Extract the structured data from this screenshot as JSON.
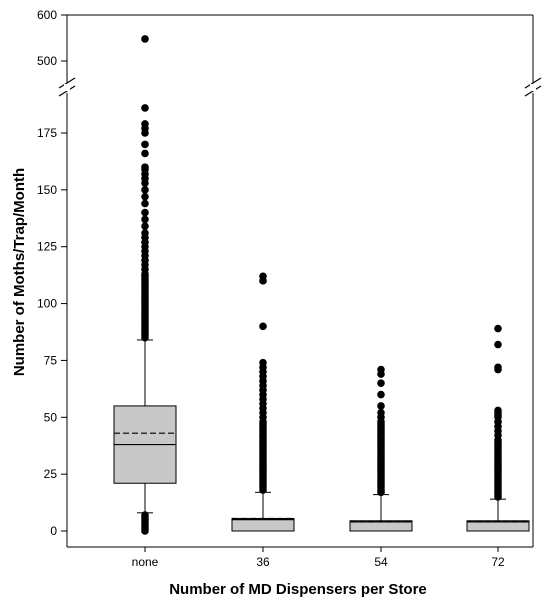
{
  "chart_data": {
    "type": "box",
    "xlabel": "Number of MD Dispensers per Store",
    "ylabel": "Number of Moths/Trap/Month",
    "y_axis_break": {
      "lower_range": [
        0,
        190
      ],
      "upper_range": [
        475,
        600
      ]
    },
    "yticks_lower": [
      0,
      25,
      50,
      75,
      100,
      125,
      150,
      175
    ],
    "yticks_upper": [
      500,
      600
    ],
    "categories": [
      "none",
      "36",
      "54",
      "72"
    ],
    "boxes": [
      {
        "category": "none",
        "q1": 21,
        "median": 38,
        "mean": 43,
        "q3": 55,
        "whisker_low": 8,
        "whisker_high": 84,
        "outliers": [
          0,
          1,
          2,
          3,
          4,
          5,
          6,
          7,
          85,
          86,
          87,
          88,
          89,
          90,
          91,
          92,
          93,
          94,
          95,
          96,
          97,
          98,
          99,
          100,
          101,
          102,
          103,
          104,
          105,
          106,
          107,
          108,
          109,
          110,
          111,
          112,
          113,
          115,
          117,
          119,
          121,
          123,
          125,
          127,
          129,
          131,
          134,
          137,
          140,
          144,
          147,
          150,
          153,
          155,
          157,
          159,
          160,
          166,
          170,
          175,
          177,
          179,
          186,
          548
        ]
      },
      {
        "category": "36",
        "q1": 0,
        "median": 5,
        "mean": 5.5,
        "q3": 5.5,
        "whisker_low": 0,
        "whisker_high": 17,
        "outliers": [
          18,
          19,
          20,
          21,
          22,
          23,
          24,
          25,
          26,
          27,
          28,
          29,
          30,
          31,
          32,
          33,
          34,
          35,
          36,
          37,
          38,
          39,
          40,
          41,
          42,
          43,
          44,
          45,
          46,
          47,
          48,
          50,
          52,
          54,
          56,
          58,
          60,
          62,
          64,
          66,
          68,
          70,
          72,
          74,
          90,
          110,
          112
        ]
      },
      {
        "category": "54",
        "q1": 0,
        "median": 4,
        "mean": 4.3,
        "q3": 4.5,
        "whisker_low": 0,
        "whisker_high": 16,
        "outliers": [
          17,
          18,
          19,
          20,
          21,
          22,
          23,
          24,
          25,
          26,
          27,
          28,
          29,
          30,
          31,
          32,
          33,
          34,
          35,
          36,
          37,
          38,
          39,
          40,
          41,
          42,
          43,
          44,
          45,
          46,
          47,
          48,
          50,
          52,
          55,
          60,
          65,
          69,
          71
        ]
      },
      {
        "category": "72",
        "q1": 0,
        "median": 4,
        "mean": 4.3,
        "q3": 4.5,
        "whisker_low": 0,
        "whisker_high": 14,
        "outliers": [
          15,
          16,
          17,
          18,
          19,
          20,
          21,
          22,
          23,
          24,
          25,
          26,
          27,
          28,
          29,
          30,
          31,
          32,
          33,
          34,
          35,
          36,
          37,
          38,
          39,
          40,
          42,
          44,
          46,
          48,
          50,
          51,
          52,
          53,
          71,
          72,
          82,
          89
        ]
      }
    ],
    "legend": "none",
    "grid": false,
    "line_styles": {
      "median": "solid",
      "mean": "dashed"
    },
    "colors": {
      "box_fill": "#c8c8c8",
      "outline": "#000000",
      "point": "#000000"
    }
  }
}
